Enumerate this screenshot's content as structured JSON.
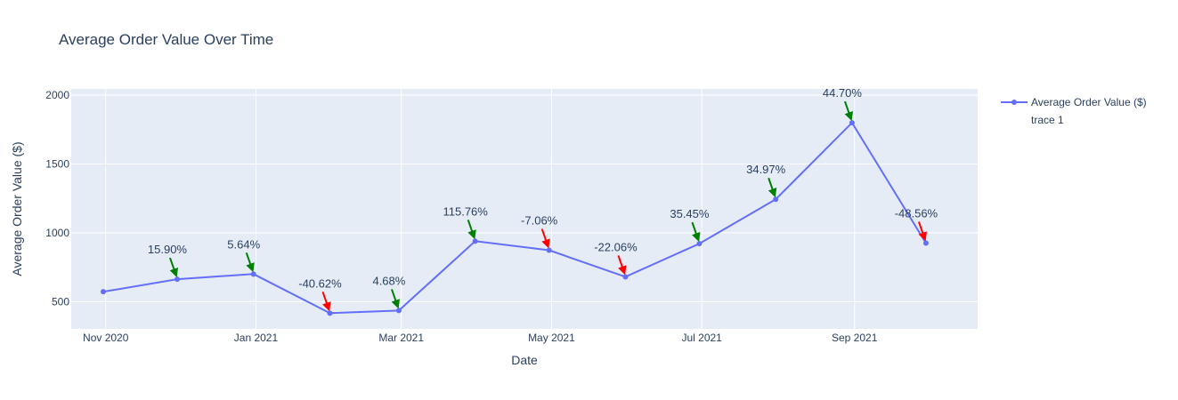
{
  "chart_data": {
    "type": "line",
    "title": "Average Order Value Over Time",
    "xlabel": "Date",
    "ylabel": "Average Order Value ($)",
    "x_range": [
      "2020-10-18",
      "2021-10-21"
    ],
    "ylim": [
      302,
      2045
    ],
    "x_ticks": [
      {
        "date": "2020-11-01",
        "label": "Nov 2020"
      },
      {
        "date": "2021-01-01",
        "label": "Jan 2021"
      },
      {
        "date": "2021-03-01",
        "label": "Mar 2021"
      },
      {
        "date": "2021-05-01",
        "label": "May 2021"
      },
      {
        "date": "2021-07-01",
        "label": "Jul 2021"
      },
      {
        "date": "2021-09-01",
        "label": "Sep 2021"
      }
    ],
    "y_ticks": [
      500,
      1000,
      1500,
      2000
    ],
    "grid": true,
    "legend_position": "top-right",
    "colors": {
      "line": "#636efa",
      "plot_bg": "#e5ecf6",
      "grid": "#ffffff",
      "text": "#2a3f5f",
      "up_arrow": "#008000",
      "down_arrow": "#ff0000"
    },
    "series": [
      {
        "name": "Average Order Value ($)",
        "points": [
          {
            "x": "2020-10-31",
            "y": 572
          },
          {
            "x": "2020-11-30",
            "y": 663
          },
          {
            "x": "2020-12-31",
            "y": 700
          },
          {
            "x": "2021-01-31",
            "y": 416
          },
          {
            "x": "2021-02-28",
            "y": 435
          },
          {
            "x": "2021-03-31",
            "y": 939
          },
          {
            "x": "2021-04-30",
            "y": 873
          },
          {
            "x": "2021-05-31",
            "y": 680
          },
          {
            "x": "2021-06-30",
            "y": 921
          },
          {
            "x": "2021-07-31",
            "y": 1243
          },
          {
            "x": "2021-08-31",
            "y": 1799
          },
          {
            "x": "2021-09-30",
            "y": 925
          }
        ]
      },
      {
        "name": "trace 1",
        "points": []
      }
    ],
    "annotations": [
      {
        "x": "2020-11-30",
        "y": 663,
        "text": "15.90%",
        "direction": "up"
      },
      {
        "x": "2020-12-31",
        "y": 700,
        "text": "5.64%",
        "direction": "up"
      },
      {
        "x": "2021-01-31",
        "y": 416,
        "text": "-40.62%",
        "direction": "down"
      },
      {
        "x": "2021-02-28",
        "y": 435,
        "text": "4.68%",
        "direction": "up"
      },
      {
        "x": "2021-03-31",
        "y": 939,
        "text": "115.76%",
        "direction": "up"
      },
      {
        "x": "2021-04-30",
        "y": 873,
        "text": "-7.06%",
        "direction": "down"
      },
      {
        "x": "2021-05-31",
        "y": 680,
        "text": "-22.06%",
        "direction": "down"
      },
      {
        "x": "2021-06-30",
        "y": 921,
        "text": "35.45%",
        "direction": "up"
      },
      {
        "x": "2021-07-31",
        "y": 1243,
        "text": "34.97%",
        "direction": "up"
      },
      {
        "x": "2021-08-31",
        "y": 1799,
        "text": "44.70%",
        "direction": "up"
      },
      {
        "x": "2021-09-30",
        "y": 925,
        "text": "-48.56%",
        "direction": "down"
      }
    ]
  }
}
